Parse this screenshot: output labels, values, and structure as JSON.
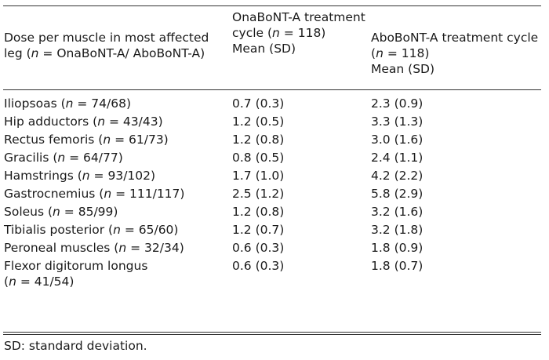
{
  "table": {
    "header": {
      "col1": {
        "pre": "Dose per muscle in most affected leg (",
        "n": "n",
        "post": " = OnaBoNT-A/ AboBoNT-A)"
      },
      "col2": {
        "line1": "OnaBoNT-A treatment cycle (",
        "n": "n",
        "post": " = 118)",
        "line3": "Mean (SD)"
      },
      "col3": {
        "line1": "AboBoNT-A treatment cycle (",
        "n": "n",
        "post": " = 118)",
        "line3": "Mean (SD)"
      }
    },
    "rows": [
      {
        "muscle": "Iliopsoas (",
        "n_label": "n",
        "count": " = 74/68)",
        "ona": "0.7 (0.3)",
        "abo": "2.3 (0.9)"
      },
      {
        "muscle": "Hip adductors (",
        "n_label": "n",
        "count": " = 43/43)",
        "ona": "1.2 (0.5)",
        "abo": "3.3 (1.3)"
      },
      {
        "muscle": "Rectus femoris (",
        "n_label": "n",
        "count": " = 61/73)",
        "ona": "1.2 (0.8)",
        "abo": "3.0 (1.6)"
      },
      {
        "muscle": "Gracilis (",
        "n_label": "n",
        "count": " = 64/77)",
        "ona": "0.8 (0.5)",
        "abo": "2.4 (1.1)"
      },
      {
        "muscle": "Hamstrings (",
        "n_label": "n",
        "count": " = 93/102)",
        "ona": "1.7 (1.0)",
        "abo": "4.2 (2.2)"
      },
      {
        "muscle": "Gastrocnemius (",
        "n_label": "n",
        "count": " = 111/117)",
        "ona": "2.5 (1.2)",
        "abo": "5.8 (2.9)"
      },
      {
        "muscle": "Soleus (",
        "n_label": "n",
        "count": " = 85/99)",
        "ona": "1.2 (0.8)",
        "abo": "3.2 (1.6)"
      },
      {
        "muscle": "Tibialis posterior (",
        "n_label": "n",
        "count": " = 65/60)",
        "ona": "1.2 (0.7)",
        "abo": "3.2 (1.8)"
      },
      {
        "muscle": "Peroneal muscles (",
        "n_label": "n",
        "count": " = 32/34)",
        "ona": "0.6 (0.3)",
        "abo": "1.8 (0.9)"
      }
    ],
    "last_row": {
      "muscle": "Flexor digitorum longus",
      "open": "(",
      "n_label": "n",
      "count": " = 41/54)",
      "ona": "0.6 (0.3)",
      "abo": "1.8 (0.7)"
    },
    "footnote": "SD: standard deviation."
  }
}
